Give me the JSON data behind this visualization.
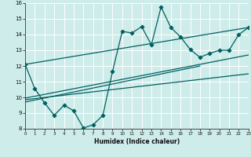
{
  "xlabel": "Humidex (Indice chaleur)",
  "xlim": [
    0,
    23
  ],
  "ylim": [
    8,
    16
  ],
  "xticks": [
    0,
    1,
    2,
    3,
    4,
    5,
    6,
    7,
    8,
    9,
    10,
    11,
    12,
    13,
    14,
    15,
    16,
    17,
    18,
    19,
    20,
    21,
    22,
    23
  ],
  "yticks": [
    8,
    9,
    10,
    11,
    12,
    13,
    14,
    15,
    16
  ],
  "bg_color": "#cdecea",
  "grid_color": "#b0d8d4",
  "line_color": "#006060",
  "scatter_x": [
    0,
    1,
    2,
    3,
    4,
    5,
    6,
    7,
    8,
    9,
    10,
    11,
    12,
    13,
    14,
    15,
    16,
    17,
    18,
    19,
    20,
    21,
    22,
    23
  ],
  "scatter_y": [
    12.1,
    10.55,
    9.65,
    8.85,
    9.5,
    9.15,
    8.05,
    8.25,
    8.85,
    11.65,
    14.2,
    14.1,
    14.5,
    13.35,
    15.75,
    14.45,
    13.85,
    13.05,
    12.55,
    12.8,
    13.0,
    13.0,
    14.0,
    14.45
  ],
  "trend1_x": [
    0,
    23
  ],
  "trend1_y": [
    12.1,
    14.45
  ],
  "trend2_x": [
    0,
    18
  ],
  "trend2_y": [
    9.7,
    12.0
  ],
  "trend3_x": [
    0,
    23
  ],
  "trend3_y": [
    9.85,
    11.5
  ],
  "trend4_x": [
    0,
    23
  ],
  "trend4_y": [
    9.95,
    12.7
  ]
}
